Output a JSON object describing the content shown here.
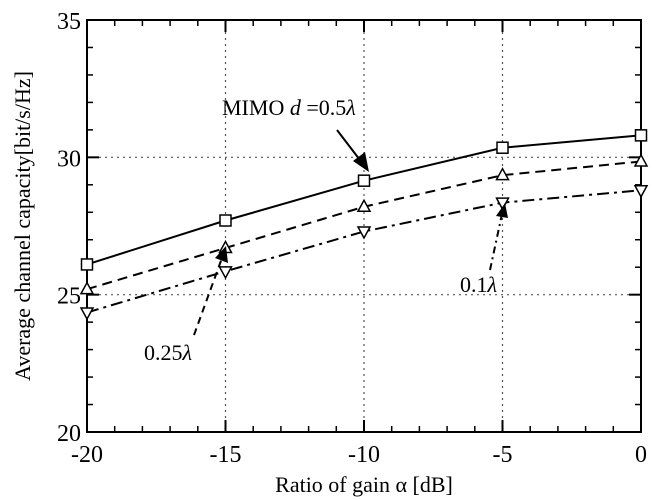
{
  "chart_data": {
    "type": "line",
    "xlabel": "Ratio of gain α [dB]",
    "ylabel": "Average channel capacity[bit/s/Hz]",
    "x": [
      -20,
      -15,
      -10,
      -5,
      0
    ],
    "xlim": [
      -20,
      0
    ],
    "ylim": [
      20,
      35
    ],
    "x_ticks": [
      "-20",
      "-15",
      "-10",
      "-5",
      "0"
    ],
    "y_ticks": [
      "20",
      "25",
      "30",
      "35"
    ],
    "grid": "dotted at labeled ticks",
    "series": [
      {
        "name": "MIMO d=0.5λ",
        "values": [
          26.1,
          27.7,
          29.15,
          30.35,
          30.8
        ],
        "marker": "square",
        "style": "solid"
      },
      {
        "name": "0.25λ",
        "values": [
          25.2,
          26.7,
          28.2,
          29.35,
          29.85
        ],
        "marker": "triangle-up",
        "style": "dashed"
      },
      {
        "name": "0.1λ",
        "values": [
          24.35,
          25.85,
          27.3,
          28.35,
          28.8
        ],
        "marker": "triangle-down",
        "style": "dashdot"
      }
    ],
    "annotations": [
      {
        "text": "MIMO d =0.5λ",
        "points_to": {
          "x": -10,
          "y": 29.15
        }
      },
      {
        "text": "0.25λ",
        "points_to": {
          "x": -15,
          "y": 26.7
        }
      },
      {
        "text": "0.1λ",
        "points_to": {
          "x": -5,
          "y": 28.35
        }
      }
    ]
  }
}
